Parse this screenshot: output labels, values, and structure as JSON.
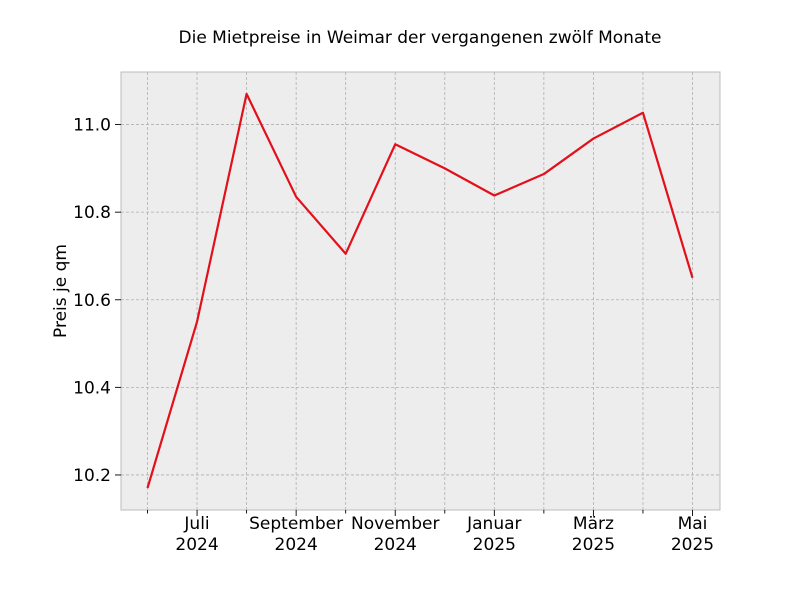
{
  "chart_data": {
    "type": "line",
    "title": "Die Mietpreise in Weimar der vergangenen zwölf Monate",
    "xlabel": "",
    "ylabel": "Preis je qm",
    "ylim": [
      10.12,
      11.12
    ],
    "yticks": [
      "10.2",
      "10.4",
      "10.6",
      "10.8",
      "11.0"
    ],
    "x": [
      "2024-06",
      "2024-07",
      "2024-08",
      "2024-09",
      "2024-10",
      "2024-11",
      "2024-12",
      "2025-01",
      "2025-02",
      "2025-03",
      "2025-04",
      "2025-05"
    ],
    "xtick_labels": [
      {
        "line1": "Juli",
        "line2": "2024"
      },
      {
        "line1": "September",
        "line2": "2024"
      },
      {
        "line1": "November",
        "line2": "2024"
      },
      {
        "line1": "Januar",
        "line2": "2025"
      },
      {
        "line1": "März",
        "line2": "2025"
      },
      {
        "line1": "Mai",
        "line2": "2025"
      }
    ],
    "series": [
      {
        "values": [
          10.17,
          10.55,
          11.07,
          10.835,
          10.705,
          10.955,
          10.9,
          10.838,
          10.887,
          10.968,
          11.027,
          10.65
        ],
        "color": "#e3101b"
      }
    ],
    "grid": true,
    "legend": "none"
  }
}
